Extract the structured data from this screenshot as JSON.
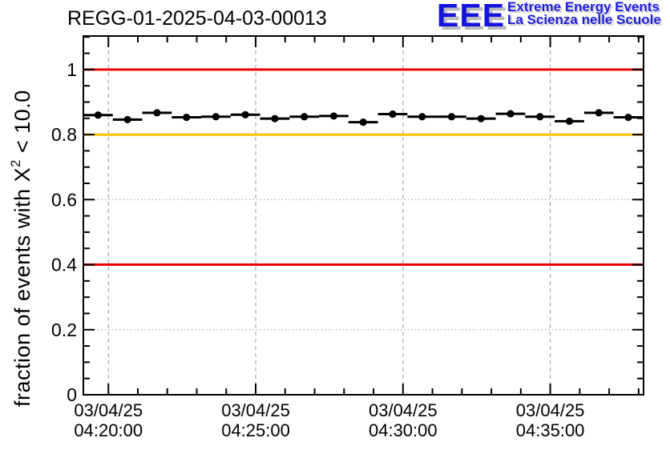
{
  "header": {
    "title": "REGG-01-2025-04-03-00013",
    "logo": {
      "acronym": "EEE",
      "line1": "Extreme Energy Events",
      "line2": "La Scienza nelle Scuole",
      "color": "#1414dd",
      "shadow_color": "#bcbcbc"
    }
  },
  "chart_data": {
    "type": "scatter",
    "title": "REGG-01-2025-04-03-00013",
    "ylabel_main": "fraction of events with X",
    "ylabel_sup": "2",
    "ylabel_tail": " < 10.0",
    "ylim": [
      0,
      1.103
    ],
    "yticks": [
      0,
      0.2,
      0.4,
      0.6,
      0.8,
      1
    ],
    "ytick_labels": [
      "0",
      "0.2",
      "0.4",
      "0.6",
      "0.8",
      "1"
    ],
    "y_minor_step": 0.05,
    "grid": true,
    "grid_color": "#999999",
    "x_axis": {
      "date_label": "03/04/25",
      "start_time": "04:19:09",
      "end_time": "04:38:10",
      "major_tick_times": [
        "04:20:00",
        "04:25:00",
        "04:30:00",
        "04:35:00"
      ],
      "minor_tick_step_seconds": 60
    },
    "reference_lines": [
      {
        "y": 1.0,
        "color": "#ee0000"
      },
      {
        "y": 0.8,
        "color": "#ffc000"
      },
      {
        "y": 0.4,
        "color": "#ee0000"
      }
    ],
    "series": [
      {
        "marker": "filled-circle",
        "color": "#000000",
        "bin_width_seconds": 60,
        "times": [
          "04:19:39",
          "04:20:39",
          "04:21:39",
          "04:22:39",
          "04:23:39",
          "04:24:39",
          "04:25:39",
          "04:26:39",
          "04:27:39",
          "04:28:39",
          "04:29:39",
          "04:30:39",
          "04:31:39",
          "04:32:39",
          "04:33:39",
          "04:34:39",
          "04:35:39",
          "04:36:39",
          "04:37:39"
        ],
        "values": [
          0.86,
          0.846,
          0.867,
          0.853,
          0.855,
          0.861,
          0.849,
          0.855,
          0.857,
          0.838,
          0.863,
          0.855,
          0.855,
          0.849,
          0.864,
          0.855,
          0.841,
          0.867,
          0.853
        ]
      }
    ]
  }
}
